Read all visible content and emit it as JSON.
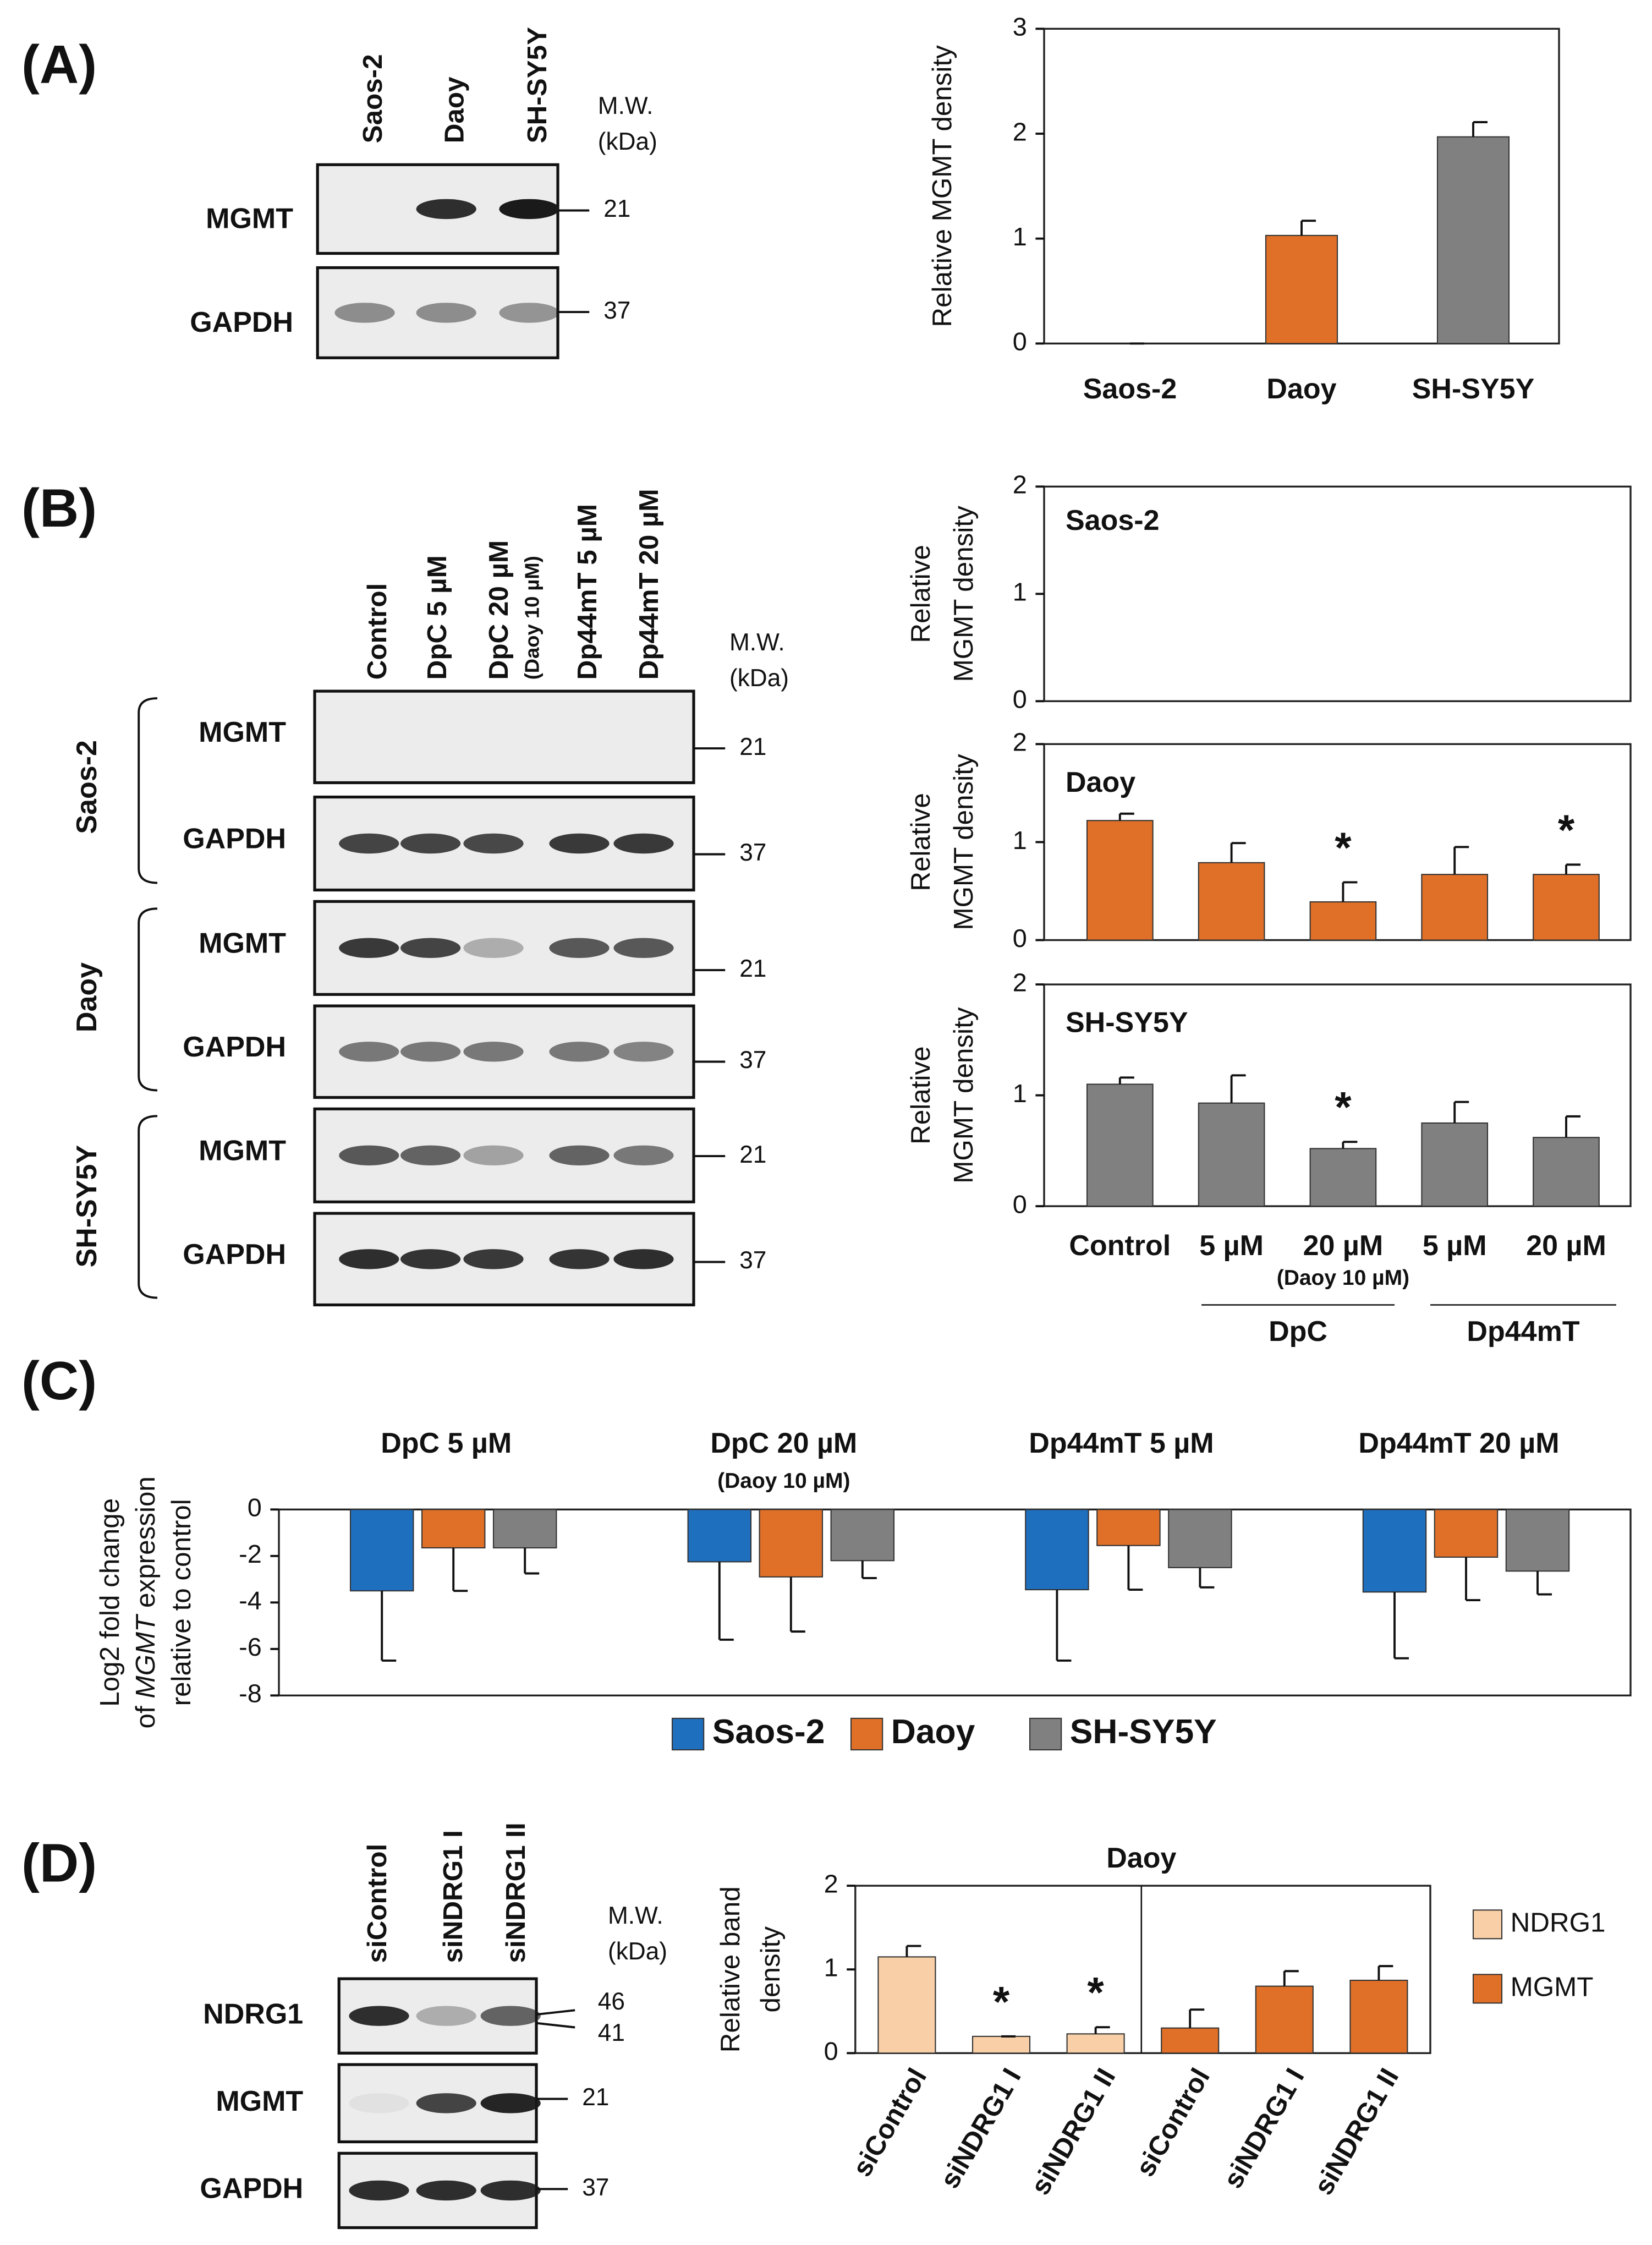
{
  "panel_labels": [
    "(A)",
    "(B)",
    "(C)",
    "(D)"
  ],
  "blot_a": {
    "lanes": [
      "Saos-2",
      "Daoy",
      "SH-SY5Y"
    ],
    "mw_header": [
      "M.W.",
      "(kDa)"
    ],
    "rows": [
      {
        "protein": "MGMT",
        "mw": "21"
      },
      {
        "protein": "GAPDH",
        "mw": "37"
      }
    ]
  },
  "blot_b": {
    "lanes": [
      "Control",
      "DpC 5 µM",
      "DpC 20 µM",
      "Dp44mT 5 µM",
      "Dp44mT 20 µM"
    ],
    "lane_note": "(Daoy 10 µM)",
    "mw_header": [
      "M.W.",
      "(kDa)"
    ],
    "groups": [
      {
        "cell_line": "Saos-2",
        "rows": [
          {
            "protein": "MGMT",
            "mw": "21"
          },
          {
            "protein": "GAPDH",
            "mw": "37"
          }
        ]
      },
      {
        "cell_line": "Daoy",
        "rows": [
          {
            "protein": "MGMT",
            "mw": "21"
          },
          {
            "protein": "GAPDH",
            "mw": "37"
          }
        ]
      },
      {
        "cell_line": "SH-SY5Y",
        "rows": [
          {
            "protein": "MGMT",
            "mw": "21"
          },
          {
            "protein": "GAPDH",
            "mw": "37"
          }
        ]
      }
    ]
  },
  "blot_d": {
    "lanes": [
      "siControl",
      "siNDRG1 I",
      "siNDRG1 II"
    ],
    "mw_header": [
      "M.W.",
      "(kDa)"
    ],
    "rows": [
      {
        "protein": "NDRG1",
        "mw": [
          "46",
          "41"
        ]
      },
      {
        "protein": "MGMT",
        "mw": "21"
      },
      {
        "protein": "GAPDH",
        "mw": "37"
      }
    ]
  },
  "chart_data": [
    {
      "type": "bar",
      "categories": [
        "Saos-2",
        "Daoy",
        "SH-SY5Y"
      ],
      "values": [
        0,
        1.03,
        1.97
      ],
      "errors": [
        0,
        0.14,
        0.14
      ],
      "colors": [
        "#808080",
        "#e07028",
        "#808080"
      ],
      "ylim": [
        0,
        3
      ],
      "yticks": [
        0,
        1,
        2,
        3
      ],
      "ylabel": [
        "Relative MGMT density"
      ]
    },
    {
      "type": "bar",
      "label": "Saos-2",
      "ylim": [
        0,
        2
      ],
      "yticks": [
        0,
        1,
        2
      ],
      "ylabel": [
        "Relative",
        "MGMT density"
      ]
    },
    {
      "type": "bar",
      "label": "Daoy",
      "values": [
        1.22,
        0.79,
        0.39,
        0.67,
        0.67
      ],
      "errors": [
        0.07,
        0.2,
        0.2,
        0.28,
        0.1
      ],
      "colors": [
        "#e07028",
        "#e07028",
        "#e07028",
        "#e07028",
        "#e07028"
      ],
      "ylim": [
        0,
        2
      ],
      "yticks": [
        0,
        1,
        2
      ],
      "ylabel": [
        "Relative",
        "MGMT density"
      ],
      "annotations": [
        {
          "index": 2,
          "text": "*"
        },
        {
          "index": 4,
          "text": "*"
        }
      ]
    },
    {
      "type": "bar",
      "label": "SH-SY5Y",
      "categories": [
        "Control",
        "5 µM",
        "20 µM",
        "5 µM",
        "20 µM"
      ],
      "category_note": "(Daoy 10 µM)",
      "x_groups": [
        "DpC",
        "Dp44mT"
      ],
      "values": [
        1.1,
        0.93,
        0.52,
        0.75,
        0.62
      ],
      "errors": [
        0.06,
        0.25,
        0.06,
        0.19,
        0.19
      ],
      "colors": [
        "#808080",
        "#808080",
        "#808080",
        "#808080",
        "#808080"
      ],
      "ylim": [
        0,
        2
      ],
      "yticks": [
        0,
        1,
        2
      ],
      "ylabel": [
        "Relative",
        "MGMT density"
      ],
      "annotations": [
        {
          "index": 2,
          "text": "*"
        }
      ]
    },
    {
      "type": "bar",
      "categories": [
        "DpC 5 µM",
        "DpC 20 µM",
        "Dp44mT 5 µM",
        "Dp44mT 20 µM"
      ],
      "category_note": "(Daoy 10 µM)",
      "series": [
        {
          "name": "Saos-2",
          "color": "#1f6fbf",
          "values": [
            -3.5,
            -2.25,
            -3.45,
            -3.55
          ],
          "errors": [
            3.0,
            3.35,
            3.05,
            2.85
          ]
        },
        {
          "name": "Daoy",
          "color": "#e07028",
          "values": [
            -1.65,
            -2.9,
            -1.55,
            -2.05
          ],
          "errors": [
            1.85,
            2.35,
            1.9,
            1.85
          ]
        },
        {
          "name": "SH-SY5Y",
          "color": "#808080",
          "values": [
            -1.65,
            -2.2,
            -2.5,
            -2.65
          ],
          "errors": [
            1.1,
            0.75,
            0.85,
            1.0
          ]
        }
      ],
      "ylim": [
        -8,
        0
      ],
      "yticks": [
        0,
        -2,
        -4,
        -6,
        -8
      ],
      "ylabel": [
        "Log2 fold change",
        [
          {
            "text": "of "
          },
          {
            "text": "MGMT",
            "italic": true
          },
          {
            "text": " expression"
          }
        ],
        "relative to control"
      ],
      "legend": "bottom"
    },
    {
      "type": "bar",
      "title": "Daoy",
      "categories": [
        "siControl",
        "siNDRG1 I",
        "siNDRG1 II",
        "siControl",
        "siNDRG1 I",
        "siNDRG1 II"
      ],
      "series": [
        {
          "name": "NDRG1",
          "color": "#f8cfa6",
          "values": [
            1.15,
            0.2,
            0.23,
            null,
            null,
            null
          ],
          "errors": [
            0.13,
            0,
            0.08,
            null,
            null,
            null
          ]
        },
        {
          "name": "MGMT",
          "color": "#e07028",
          "values": [
            null,
            null,
            null,
            0.3,
            0.8,
            0.87
          ],
          "errors": [
            null,
            null,
            null,
            0.22,
            0.18,
            0.17
          ]
        }
      ],
      "ylim": [
        0,
        2
      ],
      "yticks": [
        0,
        1,
        2
      ],
      "ylabel": [
        "Relative band",
        "density"
      ],
      "annotations": [
        {
          "index": 1,
          "text": "*"
        },
        {
          "index": 2,
          "text": "*"
        }
      ],
      "legend": "right"
    }
  ]
}
